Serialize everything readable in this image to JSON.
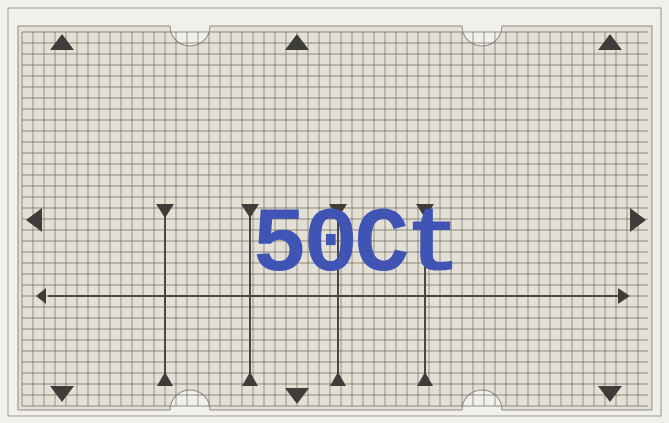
{
  "label": "50Ct"
}
